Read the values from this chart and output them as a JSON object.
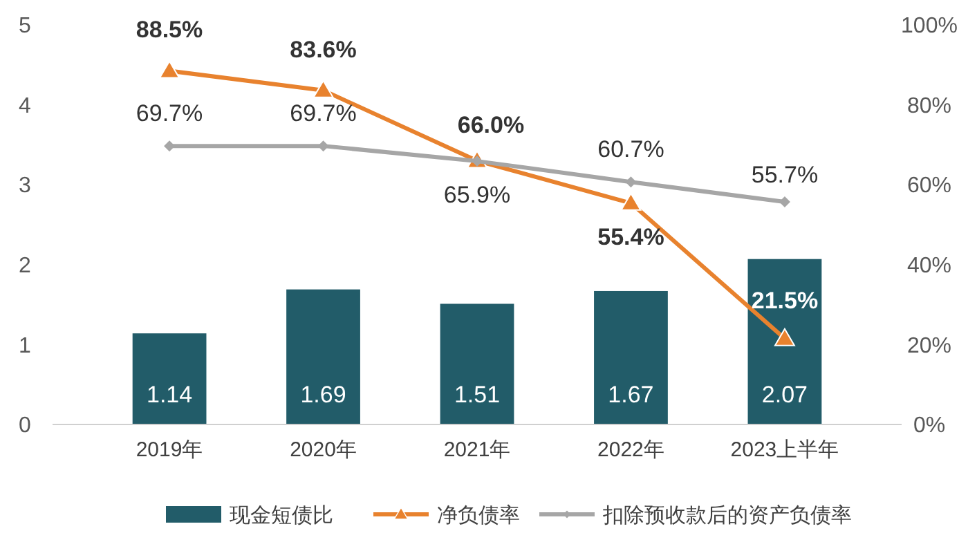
{
  "chart_data": {
    "type": "bar",
    "categories": [
      "2019年",
      "2020年",
      "2021年",
      "2022年",
      "2023上半年"
    ],
    "series": [
      {
        "name": "现金短债比",
        "color": "#225c69",
        "values": [
          1.14,
          1.69,
          1.51,
          1.67,
          2.07
        ],
        "value_labels": [
          "1.14",
          "1.69",
          "1.51",
          "1.67",
          "2.07"
        ]
      },
      {
        "name": "净负债率",
        "type": "line",
        "axis": "y2",
        "color": "#e8822e",
        "marker": "triangle",
        "values": [
          88.5,
          83.6,
          66.0,
          55.4,
          21.5
        ],
        "value_labels": [
          "88.5%",
          "83.6%",
          "66.0%",
          "55.4%",
          "21.5%"
        ]
      },
      {
        "name": "扣除预收款后的资产负债率",
        "type": "line",
        "axis": "y2",
        "color": "#a6a6a6",
        "marker": "diamond",
        "values": [
          69.7,
          69.7,
          65.9,
          60.7,
          55.7
        ],
        "value_labels": [
          "69.7%",
          "69.7%",
          "65.9%",
          "60.7%",
          "55.7%"
        ]
      }
    ],
    "ylim": [
      0,
      5
    ],
    "yticks": [
      0,
      1,
      2,
      3,
      4,
      5
    ],
    "y2lim": [
      0,
      100
    ],
    "y2ticks": [
      {
        "value": 0,
        "label": "0%"
      },
      {
        "value": 20,
        "label": "20%"
      },
      {
        "value": 40,
        "label": "40%"
      },
      {
        "value": 60,
        "label": "60%"
      },
      {
        "value": 80,
        "label": "80%"
      },
      {
        "value": 100,
        "label": "100%"
      }
    ],
    "legend": "bottom",
    "grid": false
  }
}
